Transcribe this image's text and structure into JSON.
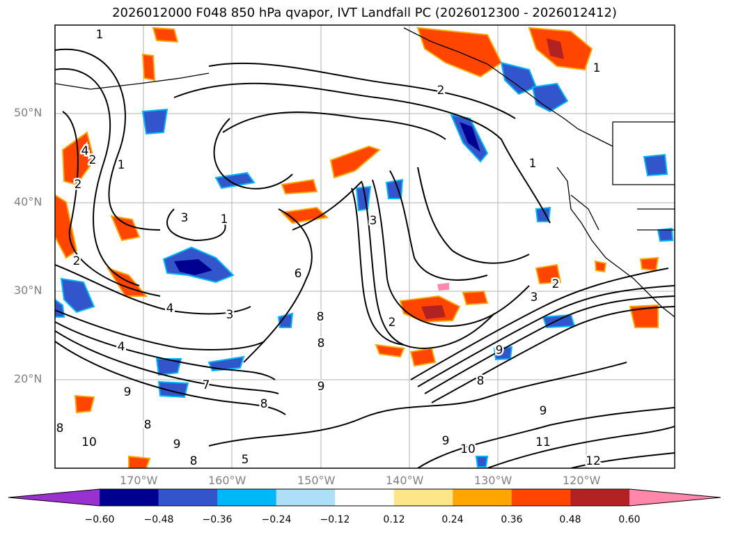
{
  "title": "2026012000 F048 850 hPa qvapor, IVT Landfall PC (2026012300 - 2026012412)",
  "map": {
    "lat_labels": [
      "50°N",
      "40°N",
      "30°N",
      "20°N"
    ],
    "lon_labels": [
      "170°W",
      "160°W",
      "150°W",
      "140°W",
      "130°W",
      "120°W"
    ],
    "lat_range": [
      10,
      60
    ],
    "lon_range": [
      -180,
      -110
    ],
    "gridlines": true,
    "contour_labels": [
      "1",
      "2",
      "1",
      "2",
      "4",
      "3",
      "1",
      "2",
      "4",
      "3",
      "4",
      "2",
      "6",
      "8",
      "3",
      "2",
      "3",
      "8",
      "9",
      "7",
      "8",
      "9",
      "8",
      "10",
      "9",
      "8",
      "8",
      "9",
      "5",
      "9",
      "10",
      "11",
      "12",
      "9",
      "8",
      "2",
      "1",
      "1"
    ]
  },
  "colorbar": {
    "ticks": [
      "−0.60",
      "−0.48",
      "−0.36",
      "−0.24",
      "−0.12",
      "0.12",
      "0.24",
      "0.36",
      "0.48",
      "0.60"
    ],
    "colors": [
      "#9b30d0",
      "#000090",
      "#3355cc",
      "#00b8f8",
      "#aedff8",
      "#ffffff",
      "#fde68a",
      "#ffa500",
      "#ff4500",
      "#b22222",
      "#ff88aa"
    ],
    "extend": "both"
  }
}
